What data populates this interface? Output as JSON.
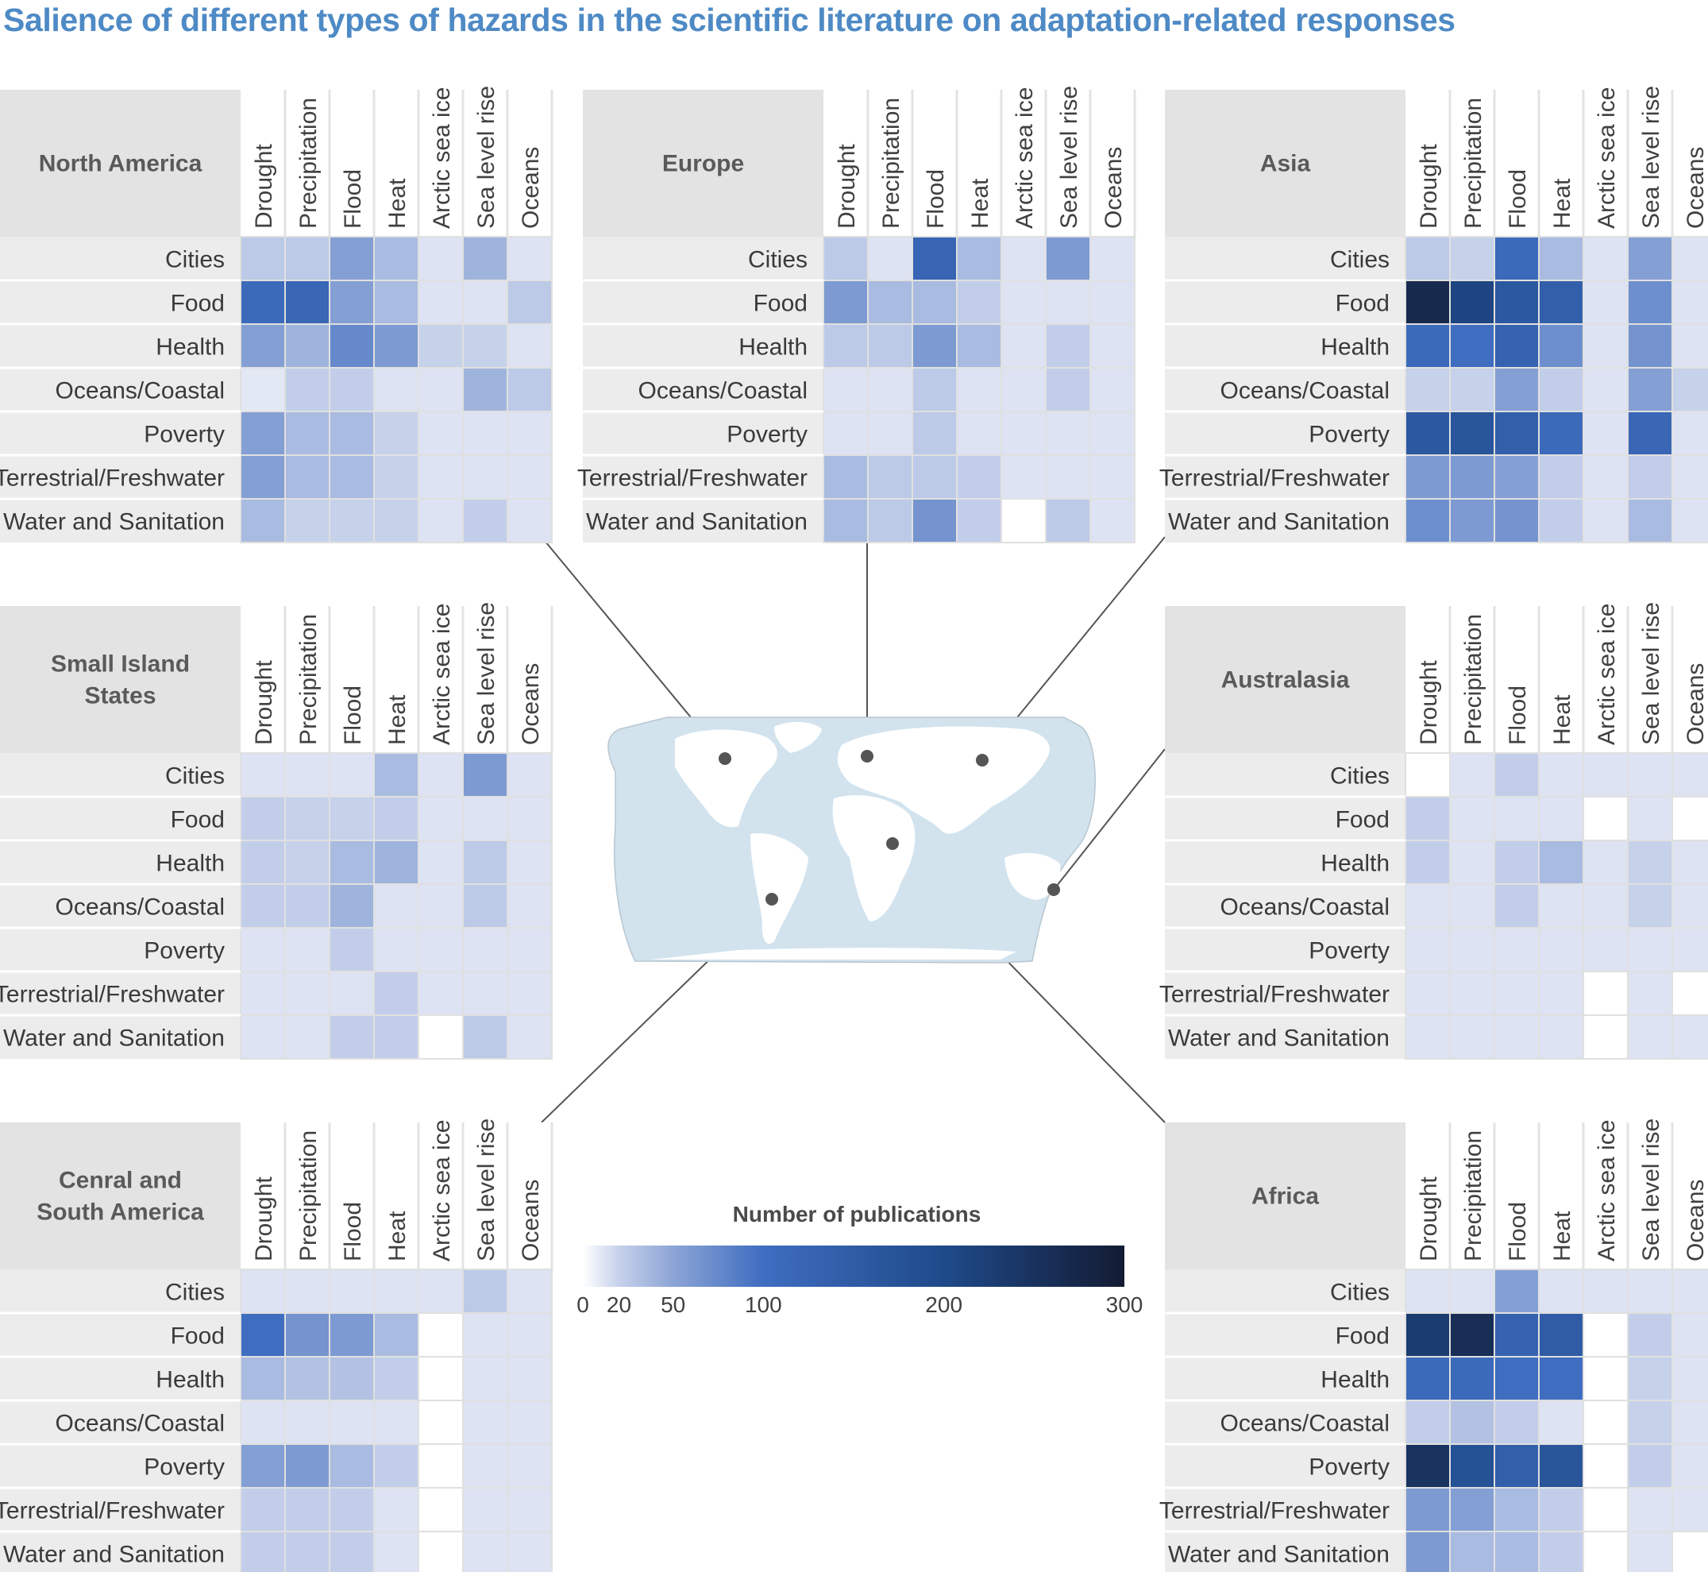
{
  "title": "Salience of different types of hazards in the scientific literature on adaptation-related responses",
  "chart_data": {
    "type": "heatmap",
    "title": "Salience of different types of hazards in the scientific literature on adaptation-related responses",
    "columns": [
      "Drought",
      "Precipitation",
      "Flood",
      "Heat",
      "Arctic sea ice",
      "Sea level rise",
      "Oceans"
    ],
    "rows": [
      "Cities",
      "Food",
      "Health",
      "Oceans/Coastal",
      "Poverty",
      "Terrestrial/Freshwater",
      "Water and Sanitation"
    ],
    "value_unit": "Number of publications",
    "missing_value": null,
    "panels": [
      {
        "region": "North America",
        "values": [
          [
            25,
            25,
            55,
            35,
            12,
            40,
            12
          ],
          [
            110,
            120,
            55,
            35,
            12,
            12,
            25
          ],
          [
            55,
            40,
            75,
            60,
            20,
            20,
            12
          ],
          [
            10,
            22,
            22,
            12,
            12,
            40,
            25
          ],
          [
            55,
            35,
            35,
            20,
            12,
            12,
            12
          ],
          [
            55,
            35,
            35,
            20,
            12,
            12,
            12
          ],
          [
            35,
            20,
            20,
            20,
            12,
            22,
            12
          ]
        ]
      },
      {
        "region": "Europe",
        "values": [
          [
            25,
            12,
            125,
            35,
            12,
            60,
            12
          ],
          [
            60,
            35,
            35,
            22,
            12,
            12,
            12
          ],
          [
            25,
            25,
            60,
            35,
            12,
            22,
            12
          ],
          [
            12,
            12,
            25,
            12,
            12,
            22,
            12
          ],
          [
            12,
            12,
            25,
            12,
            12,
            12,
            12
          ],
          [
            35,
            25,
            25,
            22,
            12,
            12,
            12
          ],
          [
            35,
            25,
            65,
            22,
            null,
            25,
            12
          ]
        ]
      },
      {
        "region": "Asia",
        "values": [
          [
            25,
            20,
            110,
            35,
            12,
            55,
            12
          ],
          [
            270,
            210,
            160,
            140,
            12,
            70,
            12
          ],
          [
            110,
            100,
            130,
            70,
            12,
            65,
            12
          ],
          [
            20,
            20,
            55,
            22,
            12,
            55,
            20
          ],
          [
            160,
            170,
            140,
            110,
            12,
            120,
            12
          ],
          [
            60,
            60,
            55,
            22,
            12,
            22,
            12
          ],
          [
            70,
            60,
            65,
            22,
            12,
            35,
            12
          ]
        ]
      },
      {
        "region": "Small Island States",
        "values": [
          [
            12,
            12,
            12,
            35,
            12,
            60,
            12
          ],
          [
            22,
            20,
            20,
            22,
            12,
            12,
            12
          ],
          [
            22,
            20,
            35,
            40,
            12,
            25,
            12
          ],
          [
            22,
            22,
            40,
            12,
            12,
            25,
            12
          ],
          [
            12,
            12,
            22,
            12,
            12,
            12,
            12
          ],
          [
            12,
            12,
            12,
            22,
            12,
            12,
            12
          ],
          [
            12,
            12,
            22,
            22,
            null,
            25,
            12
          ]
        ]
      },
      {
        "region": "Australasia",
        "values": [
          [
            null,
            12,
            22,
            12,
            12,
            12,
            12
          ],
          [
            22,
            12,
            12,
            12,
            null,
            12,
            null
          ],
          [
            22,
            12,
            22,
            35,
            12,
            20,
            12
          ],
          [
            12,
            12,
            22,
            12,
            12,
            20,
            12
          ],
          [
            12,
            12,
            12,
            12,
            12,
            12,
            12
          ],
          [
            12,
            12,
            12,
            12,
            null,
            12,
            null
          ],
          [
            12,
            12,
            12,
            12,
            null,
            12,
            12
          ]
        ]
      },
      {
        "region": "Cenral and South America",
        "values": [
          [
            12,
            12,
            12,
            12,
            12,
            25,
            12
          ],
          [
            100,
            65,
            60,
            35,
            null,
            12,
            12
          ],
          [
            35,
            30,
            30,
            22,
            null,
            12,
            12
          ],
          [
            12,
            12,
            12,
            12,
            null,
            12,
            12
          ],
          [
            55,
            60,
            35,
            22,
            null,
            12,
            12
          ],
          [
            22,
            22,
            22,
            12,
            null,
            12,
            12
          ],
          [
            22,
            22,
            22,
            12,
            null,
            12,
            12
          ]
        ]
      },
      {
        "region": "Africa",
        "values": [
          [
            12,
            12,
            55,
            12,
            12,
            12,
            12
          ],
          [
            230,
            260,
            130,
            150,
            null,
            22,
            12
          ],
          [
            110,
            110,
            100,
            100,
            null,
            20,
            12
          ],
          [
            22,
            30,
            22,
            12,
            null,
            20,
            12
          ],
          [
            250,
            180,
            140,
            170,
            null,
            22,
            12
          ],
          [
            60,
            55,
            35,
            22,
            null,
            12,
            12
          ],
          [
            60,
            35,
            35,
            22,
            null,
            12,
            null
          ]
        ]
      }
    ],
    "legend": {
      "title": "Number of publications",
      "ticks": [
        0,
        20,
        50,
        100,
        200,
        300
      ],
      "tick_labels": [
        "0",
        "20",
        "50",
        "100",
        "200",
        "300"
      ],
      "range": [
        0,
        300
      ],
      "colors": [
        "#ffffff",
        "#c6d1ea",
        "#8ca5d6",
        "#3f6dc0",
        "#1f4a8a",
        "#131b33"
      ]
    }
  },
  "colors": {
    "title": "#4e8ac5",
    "header_fill": "#e3e3e3",
    "row_fill": "#ececec",
    "cell_fill": "#e4e8f5",
    "grid_line": "#e0e0e0",
    "leader_line": "#555555",
    "map_land": "#d2e3ee",
    "map_outline": "#b8c6d0"
  }
}
